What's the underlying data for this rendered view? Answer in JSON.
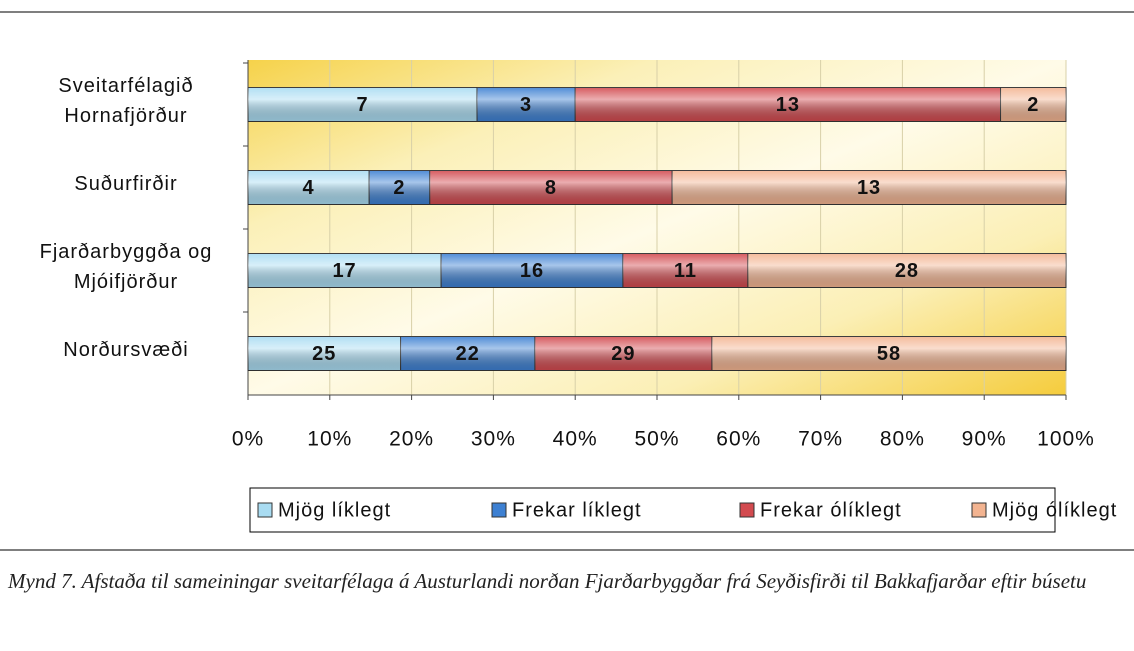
{
  "chart_data": {
    "type": "bar",
    "orientation": "horizontal",
    "stacking": "percent",
    "categories": [
      "Sveitarfélagið Hornafjörður",
      "Suðurfirðir",
      "Fjarðarbyggða og Mjóifjörður",
      "Norðursvæði"
    ],
    "series": [
      {
        "name": "Mjög líklegt",
        "color": "#a9dcf2",
        "values": [
          7,
          4,
          17,
          25
        ]
      },
      {
        "name": "Frekar líklegt",
        "color": "#3d80d2",
        "values": [
          3,
          2,
          16,
          22
        ]
      },
      {
        "name": "Frekar ólíklegt",
        "color": "#d24a4f",
        "values": [
          13,
          8,
          11,
          29
        ]
      },
      {
        "name": "Mjög ólíklegt",
        "color": "#f3b491",
        "values": [
          2,
          13,
          28,
          58
        ]
      }
    ],
    "xlim": [
      0,
      100
    ],
    "xticks": [
      {
        "value": 0,
        "label": "0%"
      },
      {
        "value": 10,
        "label": "10%"
      },
      {
        "value": 20,
        "label": "20%"
      },
      {
        "value": 30,
        "label": "30%"
      },
      {
        "value": 40,
        "label": "40%"
      },
      {
        "value": 50,
        "label": "50%"
      },
      {
        "value": 60,
        "label": "60%"
      },
      {
        "value": 70,
        "label": "70%"
      },
      {
        "value": 80,
        "label": "80%"
      },
      {
        "value": 90,
        "label": "90%"
      },
      {
        "value": 100,
        "label": "100%"
      }
    ],
    "grid": true,
    "legend": "bottom",
    "caption": "Mynd 7.  Afstaða til sameiningar sveitarfélaga á Austurlandi norðan Fjarðarbyggðar frá Seyðisfirði til Bakkafjarðar eftir búsetu"
  }
}
